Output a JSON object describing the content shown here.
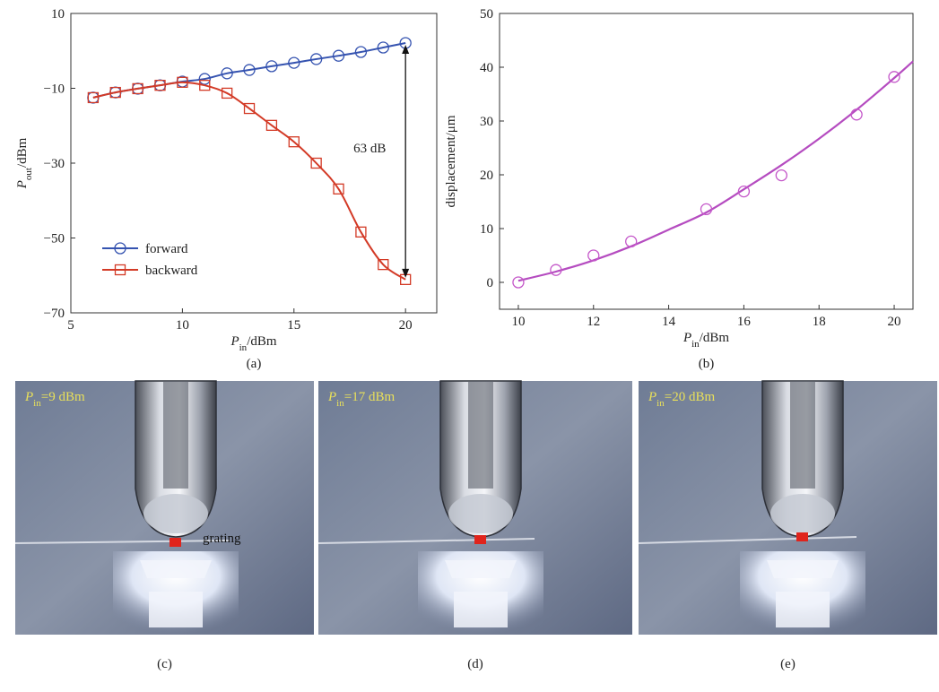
{
  "chart_data": [
    {
      "type": "line",
      "caption": "(a)",
      "xlabel": [
        "P",
        "in",
        "/dBm"
      ],
      "ylabel": [
        "P",
        "out",
        "/dBm"
      ],
      "xlim": [
        5,
        21.4
      ],
      "ylim": [
        -70,
        10
      ],
      "xticks": [
        5,
        10,
        15,
        20
      ],
      "yticks": [
        {
          "value": -70,
          "label": "−70"
        },
        {
          "value": -50,
          "label": "−50"
        },
        {
          "value": -30,
          "label": "−30"
        },
        {
          "value": -10,
          "label": "−10"
        },
        10
      ],
      "legend": "lower left",
      "annotation": "63 dB",
      "x": [
        6,
        7,
        8,
        9,
        10,
        11,
        12,
        13,
        14,
        15,
        16,
        17,
        18,
        19,
        20
      ],
      "series": [
        {
          "name": "forward",
          "color": "#3553b0",
          "marker": "circle",
          "values": [
            -12.5,
            -11.1,
            -10.1,
            -9.2,
            -8.2,
            -7.5,
            -6.0,
            -5.1,
            -4.1,
            -3.2,
            -2.2,
            -1.3,
            -0.3,
            0.9,
            2.1
          ]
        },
        {
          "name": "backward",
          "color": "#d33a26",
          "marker": "square",
          "values": [
            -12.5,
            -11.1,
            -10.1,
            -9.2,
            -8.4,
            -9.2,
            -11.3,
            -15.4,
            -19.9,
            -24.3,
            -30.0,
            -36.9,
            -48.4,
            -57.1,
            -61.1
          ]
        }
      ]
    },
    {
      "type": "scatter",
      "caption": "(b)",
      "xlabel": [
        "P",
        "in",
        "/dBm"
      ],
      "ylabel": [
        "displacement/μm"
      ],
      "xlim": [
        9.5,
        20.5
      ],
      "ylim": [
        -5,
        50
      ],
      "xticks": [
        10,
        12,
        14,
        16,
        18,
        20
      ],
      "yticks": [
        0,
        10,
        20,
        30,
        40,
        50
      ],
      "series": [
        {
          "color": "#c457c9",
          "marker": "circle",
          "x": [
            10,
            11,
            12,
            13,
            15,
            16,
            17,
            19,
            20
          ],
          "values": [
            0,
            2.3,
            5.0,
            7.6,
            13.6,
            16.9,
            19.9,
            31.2,
            38.2
          ]
        }
      ],
      "curve": {
        "color": "#b54cc0",
        "x": [
          10,
          11,
          12,
          13,
          14,
          15,
          16,
          17,
          18,
          19,
          20,
          20.5
        ],
        "values": [
          0.3,
          2.0,
          4.1,
          6.7,
          9.8,
          13.0,
          17.3,
          21.8,
          26.7,
          32.1,
          38.0,
          41.1
        ]
      }
    }
  ],
  "panels": [
    {
      "label": "(c)",
      "power": [
        "P",
        "in",
        "=9 dBm"
      ],
      "note": "grating"
    },
    {
      "label": "(d)",
      "power": [
        "P",
        "in",
        "=17 dBm"
      ]
    },
    {
      "label": "(e)",
      "power": [
        "P",
        "in",
        "=20 dBm"
      ]
    }
  ]
}
